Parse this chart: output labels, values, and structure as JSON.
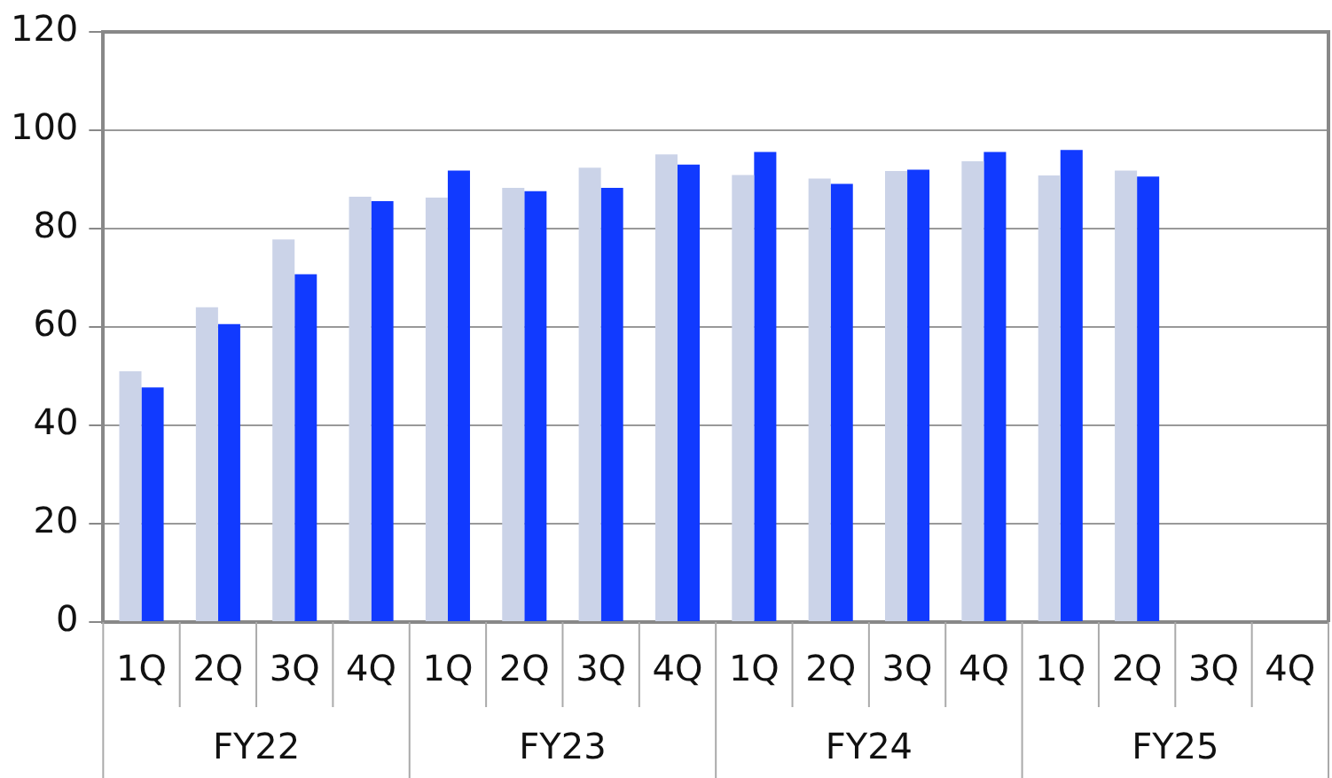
{
  "chart_data": {
    "type": "bar",
    "categories": [
      "1Q",
      "2Q",
      "3Q",
      "4Q",
      "1Q",
      "2Q",
      "3Q",
      "4Q",
      "1Q",
      "2Q",
      "3Q",
      "4Q",
      "1Q",
      "2Q",
      "3Q",
      "4Q"
    ],
    "series": [
      {
        "color": "#cbd3e8",
        "values": [
          51.0,
          64.0,
          77.8,
          86.5,
          86.3,
          88.3,
          92.4,
          95.1,
          90.9,
          90.2,
          91.7,
          93.7,
          90.8,
          91.8,
          null,
          null
        ]
      },
      {
        "color": "#113aff",
        "values": [
          47.7,
          60.6,
          70.7,
          85.6,
          91.8,
          87.6,
          88.3,
          93.0,
          95.6,
          89.1,
          92.0,
          95.6,
          96.0,
          90.6,
          null,
          null
        ]
      }
    ],
    "ylim": [
      0,
      120
    ],
    "yticks": [
      0,
      20,
      40,
      60,
      80,
      100,
      120
    ],
    "grid": "y",
    "legend": false,
    "annotations": [
      "FY22",
      "FY23",
      "FY24",
      "FY25"
    ]
  }
}
